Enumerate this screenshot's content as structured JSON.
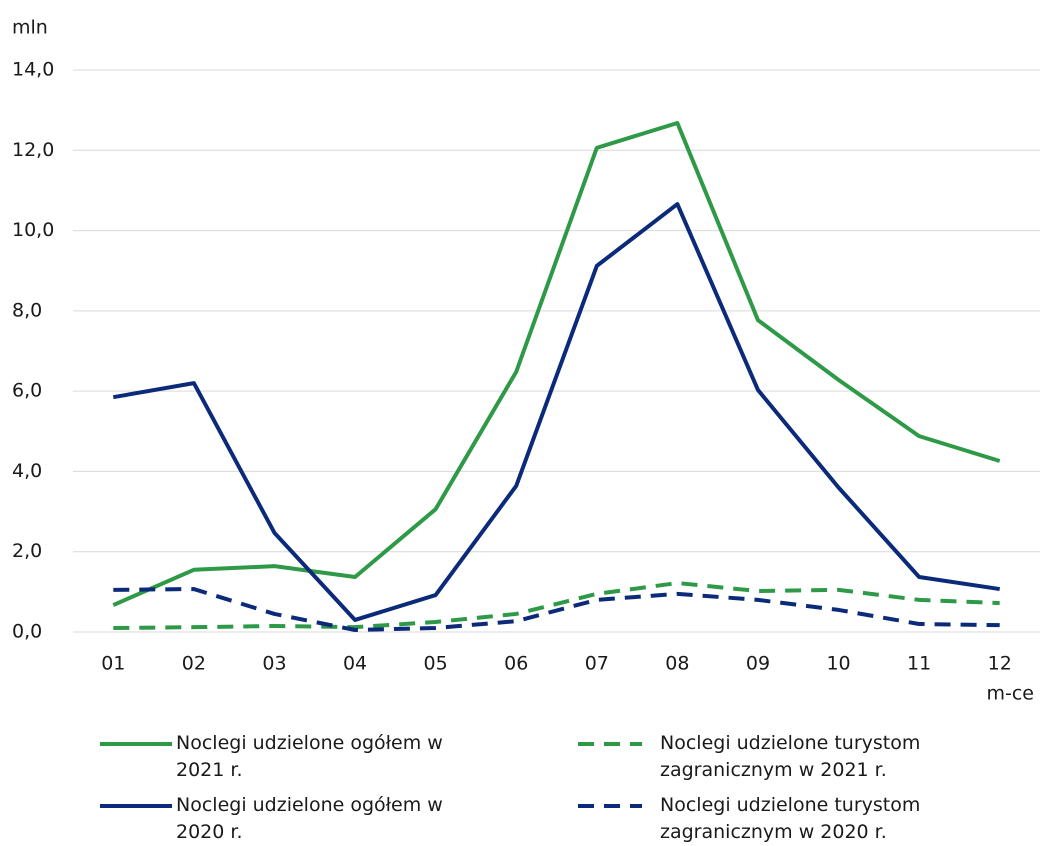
{
  "chart_data": {
    "type": "line",
    "y_label": "mln",
    "x_label": "m-ce",
    "categories": [
      "01",
      "02",
      "03",
      "04",
      "05",
      "06",
      "07",
      "08",
      "09",
      "10",
      "11",
      "12"
    ],
    "series": [
      {
        "name": "Noclegi udzielone ogółem w 2021 r.",
        "color": "#2e9a47",
        "dashed": false,
        "values": [
          0.67,
          1.55,
          1.64,
          1.37,
          3.06,
          6.48,
          12.06,
          12.68,
          7.77,
          6.28,
          4.88,
          4.26
        ]
      },
      {
        "name": "Noclegi udzielone turystom zagranicznym w 2021 r.",
        "color": "#2e9a47",
        "dashed": true,
        "values": [
          0.1,
          0.12,
          0.15,
          0.12,
          0.25,
          0.45,
          0.95,
          1.22,
          1.02,
          1.05,
          0.8,
          0.72
        ]
      },
      {
        "name": "Noclegi udzielone ogółem w 2020 r.",
        "color": "#0b2a7a",
        "dashed": false,
        "values": [
          5.85,
          6.2,
          2.47,
          0.3,
          0.92,
          3.64,
          9.12,
          10.66,
          6.03,
          3.6,
          1.37,
          1.07
        ]
      },
      {
        "name": "Noclegi udzielone turystom zagranicznym  w 2020 r.",
        "color": "#0b2a7a",
        "dashed": true,
        "values": [
          1.05,
          1.07,
          0.45,
          0.05,
          0.1,
          0.27,
          0.8,
          0.95,
          0.8,
          0.55,
          0.2,
          0.17
        ]
      }
    ],
    "ylim": [
      0,
      14
    ],
    "yticks": [
      {
        "value": 0,
        "label": "0,0"
      },
      {
        "value": 2,
        "label": "2,0"
      },
      {
        "value": 4,
        "label": "4,0"
      },
      {
        "value": 6,
        "label": "6,0"
      },
      {
        "value": 8,
        "label": "8,0"
      },
      {
        "value": 10,
        "label": "10,0"
      },
      {
        "value": 12,
        "label": "12,0"
      },
      {
        "value": 14,
        "label": "14,0"
      }
    ],
    "grid": true
  }
}
